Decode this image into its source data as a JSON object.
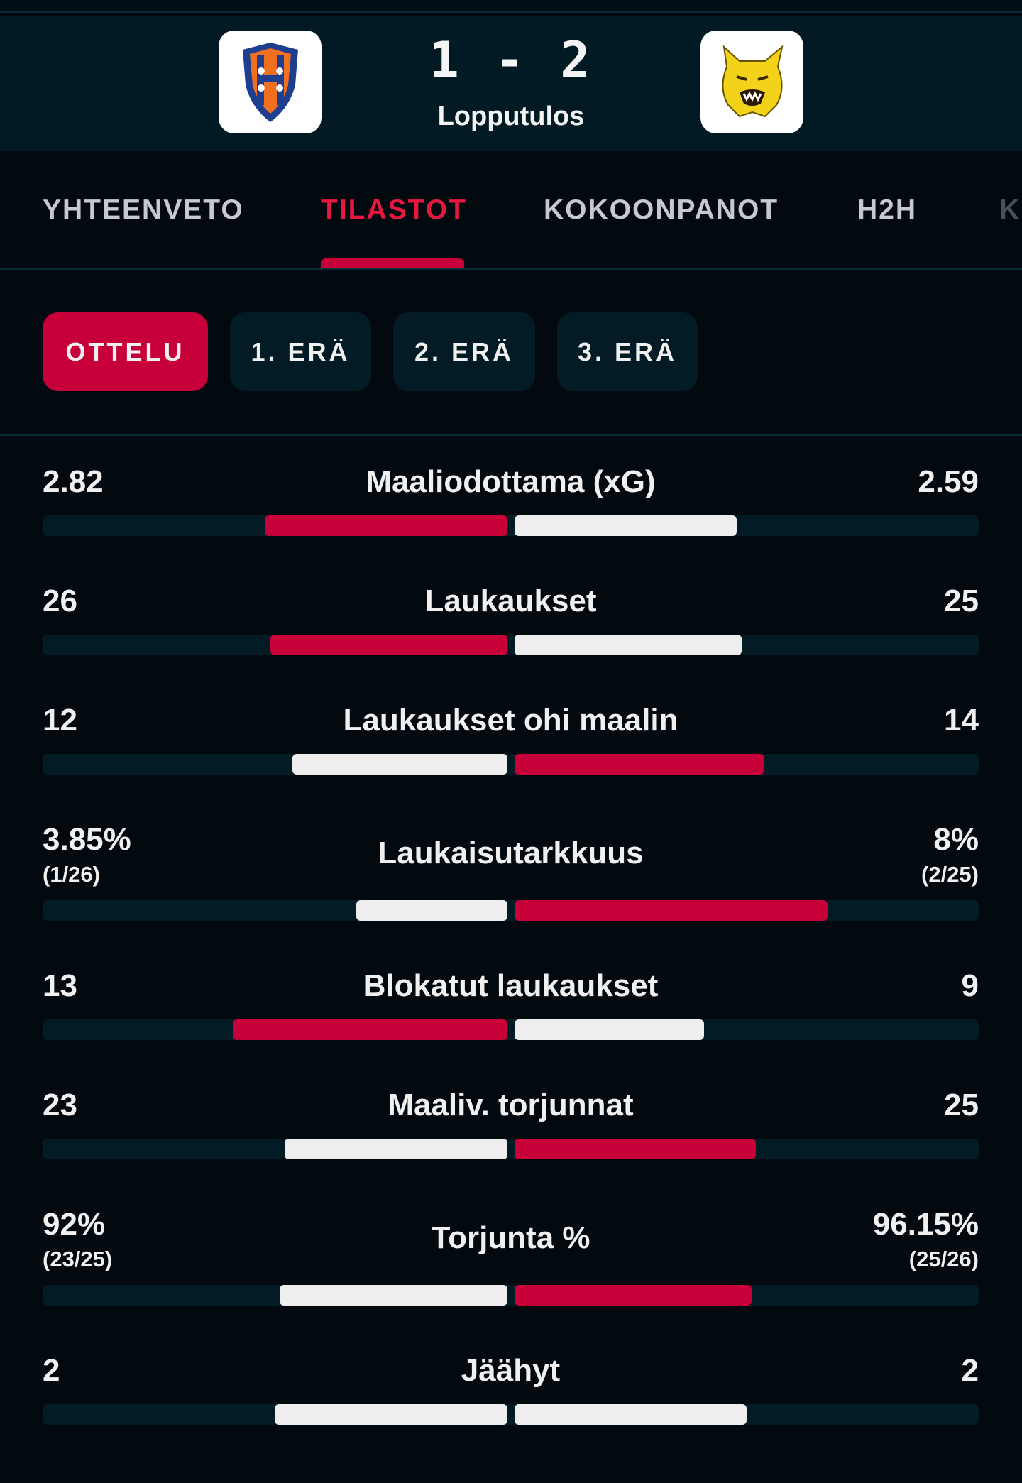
{
  "match": {
    "home_logo": "Tappara crest",
    "away_logo": "Ilves lynx crest",
    "score": "1 - 2",
    "status": "Lopputulos"
  },
  "tabs": [
    {
      "label": "YHTEENVETO",
      "active": false
    },
    {
      "label": "TILASTOT",
      "active": true
    },
    {
      "label": "KOKOONPANOT",
      "active": false
    },
    {
      "label": "H2H",
      "active": false
    },
    {
      "label": "K",
      "active": false
    }
  ],
  "periods": [
    {
      "label": "OTTELU",
      "active": true
    },
    {
      "label": "1. ERÄ",
      "active": false
    },
    {
      "label": "2. ERÄ",
      "active": false
    },
    {
      "label": "3. ERÄ",
      "active": false
    }
  ],
  "colors": {
    "accent": "#c8003a",
    "neutral_bar": "#eeeeee",
    "track": "#031b24"
  },
  "stats": [
    {
      "label": "Maaliodottama (xG)",
      "home": "2.82",
      "away": "2.59",
      "home_value": 2.82,
      "away_value": 2.59
    },
    {
      "label": "Laukaukset",
      "home": "26",
      "away": "25",
      "home_value": 26,
      "away_value": 25
    },
    {
      "label": "Laukaukset ohi maalin",
      "home": "12",
      "away": "14",
      "home_value": 12,
      "away_value": 14
    },
    {
      "label": "Laukaisutarkkuus",
      "home": "3.85%",
      "away": "8%",
      "home_sub": "(1/26)",
      "away_sub": "(2/25)",
      "home_value": 3.85,
      "away_value": 8
    },
    {
      "label": "Blokatut laukaukset",
      "home": "13",
      "away": "9",
      "home_value": 13,
      "away_value": 9
    },
    {
      "label": "Maaliv. torjunnat",
      "home": "23",
      "away": "25",
      "home_value": 23,
      "away_value": 25
    },
    {
      "label": "Torjunta %",
      "home": "92%",
      "away": "96.15%",
      "home_sub": "(23/25)",
      "away_sub": "(25/26)",
      "home_value": 92,
      "away_value": 96.15
    },
    {
      "label": "Jäähyt",
      "home": "2",
      "away": "2",
      "home_value": 2,
      "away_value": 2
    }
  ]
}
